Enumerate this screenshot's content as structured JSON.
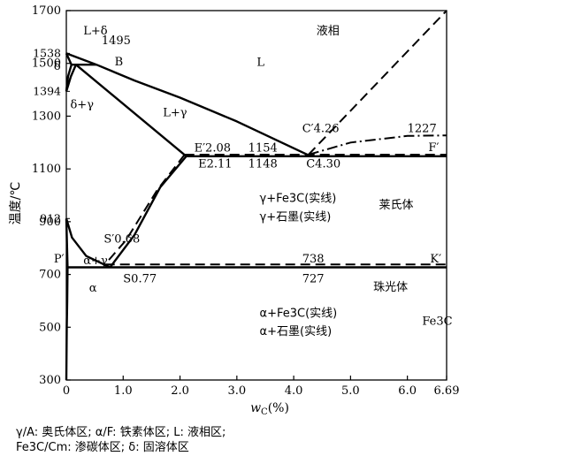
{
  "chart_data": {
    "type": "phase-diagram",
    "xlabel_prefix": "w",
    "xlabel_sub": "C",
    "xlabel_suffix": "(%)",
    "ylabel": "温度/℃",
    "xlim": [
      0,
      6.69
    ],
    "ylim": [
      300,
      1700
    ],
    "x_ticks": [
      {
        "v": 0,
        "label": "0"
      },
      {
        "v": 1,
        "label": "1.0"
      },
      {
        "v": 2,
        "label": "2.0"
      },
      {
        "v": 3,
        "label": "3.0"
      },
      {
        "v": 4,
        "label": "4.0"
      },
      {
        "v": 5,
        "label": "5.0"
      },
      {
        "v": 6,
        "label": "6.0"
      },
      {
        "v": 6.69,
        "label": "6.69"
      }
    ],
    "y_ticks": [
      {
        "v": 300,
        "label": "300"
      },
      {
        "v": 500,
        "label": "500"
      },
      {
        "v": 700,
        "label": "700"
      },
      {
        "v": 900,
        "label": "900"
      },
      {
        "v": 1100,
        "label": "1100"
      },
      {
        "v": 1300,
        "label": "1300"
      },
      {
        "v": 1500,
        "label": "1500"
      },
      {
        "v": 1700,
        "label": "1700"
      }
    ],
    "y_side_labels": [
      {
        "v": 1538,
        "label": "1538"
      },
      {
        "v": 1394,
        "label": "1394"
      },
      {
        "v": 912,
        "label": "912"
      }
    ],
    "solid_lines": [
      {
        "name": "liquidus-ab",
        "points": [
          [
            0,
            1538
          ],
          [
            0.53,
            1495
          ]
        ]
      },
      {
        "name": "liquidus-bc",
        "points": [
          [
            0.53,
            1495
          ],
          [
            1.2,
            1435
          ],
          [
            2.0,
            1370
          ],
          [
            3.0,
            1280
          ],
          [
            4.3,
            1148
          ]
        ]
      },
      {
        "name": "solidus-ah",
        "points": [
          [
            0,
            1538
          ],
          [
            0.09,
            1495
          ]
        ]
      },
      {
        "name": "peritectic-hb",
        "points": [
          [
            0.09,
            1495
          ],
          [
            0.53,
            1495
          ]
        ]
      },
      {
        "name": "solidus-je",
        "points": [
          [
            0.17,
            1495
          ],
          [
            2.11,
            1148
          ]
        ]
      },
      {
        "name": "eutectic-ef",
        "points": [
          [
            2.11,
            1148
          ],
          [
            6.69,
            1148
          ]
        ]
      },
      {
        "name": "delta-solvus-hn",
        "points": [
          [
            0.09,
            1495
          ],
          [
            0.03,
            1450
          ],
          [
            0,
            1394
          ]
        ]
      },
      {
        "name": "delta-solvus-jn",
        "points": [
          [
            0.17,
            1495
          ],
          [
            0.08,
            1450
          ],
          [
            0,
            1394
          ]
        ]
      },
      {
        "name": "acm-es",
        "points": [
          [
            2.11,
            1148
          ],
          [
            1.65,
            1030
          ],
          [
            1.2,
            850
          ],
          [
            0.77,
            727
          ]
        ]
      },
      {
        "name": "a3-gs",
        "points": [
          [
            0,
            912
          ],
          [
            0.1,
            840
          ],
          [
            0.35,
            770
          ],
          [
            0.77,
            727
          ]
        ]
      },
      {
        "name": "gp",
        "points": [
          [
            0,
            912
          ],
          [
            0.0218,
            727
          ]
        ]
      },
      {
        "name": "eutectoid-ps",
        "points": [
          [
            0.0218,
            727
          ],
          [
            6.69,
            727
          ]
        ]
      },
      {
        "name": "solvus-pq",
        "points": [
          [
            0.0218,
            727
          ],
          [
            0.015,
            600
          ],
          [
            0.008,
            500
          ],
          [
            0,
            300
          ]
        ]
      }
    ],
    "dashed_lines": [
      {
        "name": "graphite-liquidus",
        "points": [
          [
            4.26,
            1154
          ],
          [
            6.69,
            1700
          ]
        ]
      },
      {
        "name": "graphite-eutectic",
        "points": [
          [
            2.08,
            1154
          ],
          [
            6.69,
            1154
          ]
        ]
      },
      {
        "name": "graphite-acm",
        "points": [
          [
            2.08,
            1154
          ],
          [
            1.6,
            1020
          ],
          [
            1.05,
            830
          ],
          [
            0.68,
            738
          ]
        ]
      },
      {
        "name": "graphite-eutectoid",
        "points": [
          [
            0.68,
            738
          ],
          [
            6.69,
            738
          ]
        ]
      }
    ],
    "dashdot_lines": [
      {
        "name": "graphite-liquidus-right",
        "points": [
          [
            4.26,
            1154
          ],
          [
            5.0,
            1200
          ],
          [
            6.0,
            1225
          ],
          [
            6.69,
            1227
          ]
        ]
      }
    ],
    "annotations": [
      {
        "text": "液相",
        "x": 4.4,
        "y": 1610,
        "cjk": true
      },
      {
        "text": "L",
        "x": 3.35,
        "y": 1490
      },
      {
        "text": "L+δ",
        "x": 0.3,
        "y": 1610
      },
      {
        "text": "1495",
        "x": 0.62,
        "y": 1572
      },
      {
        "text": "B",
        "x": 0.85,
        "y": 1493
      },
      {
        "text": "δ+γ",
        "x": 0.07,
        "y": 1330
      },
      {
        "text": "L+γ",
        "x": 1.7,
        "y": 1300
      },
      {
        "text": "C′4.26",
        "x": 4.15,
        "y": 1240
      },
      {
        "text": "1227",
        "x": 6.0,
        "y": 1240
      },
      {
        "text": "E′2.08",
        "x": 2.25,
        "y": 1165
      },
      {
        "text": "1154",
        "x": 3.2,
        "y": 1165
      },
      {
        "text": "F′",
        "x": 6.37,
        "y": 1168
      },
      {
        "text": "E2.11",
        "x": 2.32,
        "y": 1105
      },
      {
        "text": "1148",
        "x": 3.2,
        "y": 1105
      },
      {
        "text": "C4.30",
        "x": 4.22,
        "y": 1105
      },
      {
        "text": "γ+Fe3C(实线)",
        "x": 3.4,
        "y": 975,
        "cjk": true
      },
      {
        "text": "γ+石墨(实线)",
        "x": 3.4,
        "y": 905,
        "cjk": true
      },
      {
        "text": "莱氏体",
        "x": 5.5,
        "y": 950,
        "cjk": true
      },
      {
        "text": "S′0.68",
        "x": 0.66,
        "y": 820
      },
      {
        "text": "α+γ",
        "x": 0.3,
        "y": 738
      },
      {
        "text": "738",
        "x": 4.15,
        "y": 745
      },
      {
        "text": "K′",
        "x": 6.4,
        "y": 745
      },
      {
        "text": "S0.77",
        "x": 1.0,
        "y": 670
      },
      {
        "text": "727",
        "x": 4.15,
        "y": 670
      },
      {
        "text": "α",
        "x": 0.4,
        "y": 635
      },
      {
        "text": "珠光体",
        "x": 5.4,
        "y": 638,
        "cjk": true
      },
      {
        "text": "α+Fe3C(实线)",
        "x": 3.4,
        "y": 540,
        "cjk": true
      },
      {
        "text": "α+石墨(实线)",
        "x": 3.4,
        "y": 470,
        "cjk": true
      },
      {
        "text": "Fe3C",
        "x": 6.26,
        "y": 510
      },
      {
        "text": "P′",
        "x": -0.22,
        "y": 745
      },
      {
        "text": "δ",
        "x": -0.22,
        "y": 1475
      }
    ],
    "inline_y_labels": [
      {
        "v": 1500,
        "label": "1500"
      },
      {
        "v": 900,
        "label": "900"
      },
      {
        "v": 700,
        "label": "700"
      }
    ]
  },
  "legend": {
    "line1": "γ/A: 奥氏体区; α/F: 铁素体区; L: 液相区;",
    "line2": "Fe3C/Cm: 渗碳体区; δ: 固溶体区"
  }
}
